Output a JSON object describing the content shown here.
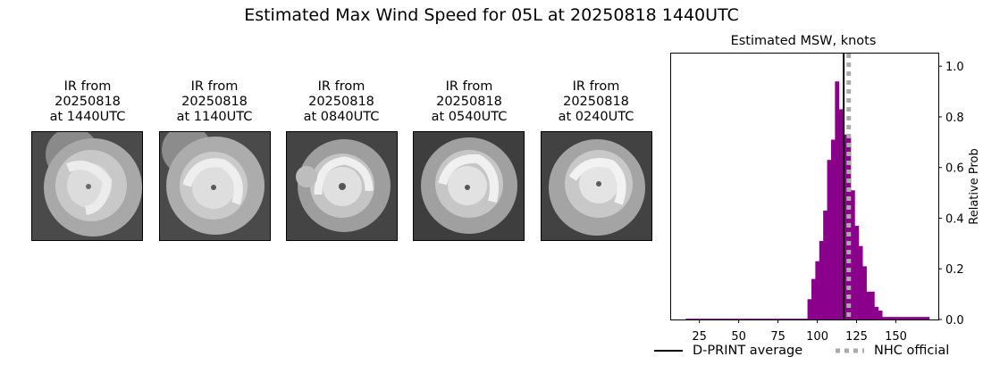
{
  "suptitle": "Estimated Max Wind Speed for 05L at 20250818 1440UTC",
  "ir_panels": [
    {
      "line1": "IR from",
      "line2": "20250818",
      "line3": "at 1440UTC"
    },
    {
      "line1": "IR from",
      "line2": "20250818",
      "line3": "at 1140UTC"
    },
    {
      "line1": "IR from",
      "line2": "20250818",
      "line3": "at 0840UTC"
    },
    {
      "line1": "IR from",
      "line2": "20250818",
      "line3": "at 0540UTC"
    },
    {
      "line1": "IR from",
      "line2": "20250818",
      "line3": "at 0240UTC"
    }
  ],
  "chart_data": {
    "type": "bar",
    "title": "Estimated MSW, knots",
    "xlabel": "",
    "ylabel": "Relative Prob",
    "xlim": [
      7,
      177
    ],
    "ylim": [
      0,
      1.05
    ],
    "xticks": [
      25,
      50,
      75,
      100,
      125,
      150
    ],
    "yticks": [
      0.0,
      0.2,
      0.4,
      0.6,
      0.8,
      1.0
    ],
    "ytick_labels": [
      "0.0",
      "0.2",
      "0.4",
      "0.6",
      "0.8",
      "1.0"
    ],
    "bin_width": 2.5,
    "bins": [
      {
        "x": 17.5,
        "y": 0.003
      },
      {
        "x": 20,
        "y": 0.003
      },
      {
        "x": 22.5,
        "y": 0.003
      },
      {
        "x": 25,
        "y": 0.003
      },
      {
        "x": 27.5,
        "y": 0.003
      },
      {
        "x": 30,
        "y": 0.003
      },
      {
        "x": 32.5,
        "y": 0.003
      },
      {
        "x": 35,
        "y": 0.003
      },
      {
        "x": 37.5,
        "y": 0.003
      },
      {
        "x": 40,
        "y": 0.003
      },
      {
        "x": 42.5,
        "y": 0.003
      },
      {
        "x": 45,
        "y": 0.003
      },
      {
        "x": 47.5,
        "y": 0.003
      },
      {
        "x": 50,
        "y": 0.003
      },
      {
        "x": 52.5,
        "y": 0.003
      },
      {
        "x": 55,
        "y": 0.003
      },
      {
        "x": 57.5,
        "y": 0.003
      },
      {
        "x": 60,
        "y": 0.003
      },
      {
        "x": 62.5,
        "y": 0.003
      },
      {
        "x": 65,
        "y": 0.003
      },
      {
        "x": 67.5,
        "y": 0.003
      },
      {
        "x": 70,
        "y": 0.003
      },
      {
        "x": 72.5,
        "y": 0.003
      },
      {
        "x": 75,
        "y": 0.003
      },
      {
        "x": 77.5,
        "y": 0.003
      },
      {
        "x": 80,
        "y": 0.003
      },
      {
        "x": 82.5,
        "y": 0.003
      },
      {
        "x": 85,
        "y": 0.003
      },
      {
        "x": 87.5,
        "y": 0.003
      },
      {
        "x": 90,
        "y": 0.003
      },
      {
        "x": 92.5,
        "y": 0.003
      },
      {
        "x": 95,
        "y": 0.08
      },
      {
        "x": 97.5,
        "y": 0.16
      },
      {
        "x": 100,
        "y": 0.23
      },
      {
        "x": 102.5,
        "y": 0.31
      },
      {
        "x": 105,
        "y": 0.43
      },
      {
        "x": 107.5,
        "y": 0.63
      },
      {
        "x": 110,
        "y": 0.71
      },
      {
        "x": 112.5,
        "y": 0.94
      },
      {
        "x": 115,
        "y": 0.83
      },
      {
        "x": 117.5,
        "y": 0.73
      },
      {
        "x": 120,
        "y": 0.72
      },
      {
        "x": 122.5,
        "y": 0.51
      },
      {
        "x": 125,
        "y": 0.37
      },
      {
        "x": 127.5,
        "y": 0.29
      },
      {
        "x": 130,
        "y": 0.21
      },
      {
        "x": 132.5,
        "y": 0.11
      },
      {
        "x": 135,
        "y": 0.11
      },
      {
        "x": 137.5,
        "y": 0.05
      },
      {
        "x": 140,
        "y": 0.035
      },
      {
        "x": 142.5,
        "y": 0.01
      },
      {
        "x": 145,
        "y": 0.01
      },
      {
        "x": 147.5,
        "y": 0.01
      },
      {
        "x": 150,
        "y": 0.01
      },
      {
        "x": 152.5,
        "y": 0.01
      },
      {
        "x": 155,
        "y": 0.01
      },
      {
        "x": 157.5,
        "y": 0.01
      },
      {
        "x": 160,
        "y": 0.01
      },
      {
        "x": 162.5,
        "y": 0.01
      },
      {
        "x": 165,
        "y": 0.01
      },
      {
        "x": 167.5,
        "y": 0.01
      },
      {
        "x": 170,
        "y": 0.01
      }
    ],
    "dprint_average": 116.8,
    "nhc_official": 120,
    "bar_color": "#8b008b",
    "dprint_color": "#000000",
    "nhc_color": "#aaaaaa",
    "legend": {
      "dprint_label": "D-PRINT average",
      "nhc_label": "NHC official",
      "placement": "bottom"
    }
  }
}
